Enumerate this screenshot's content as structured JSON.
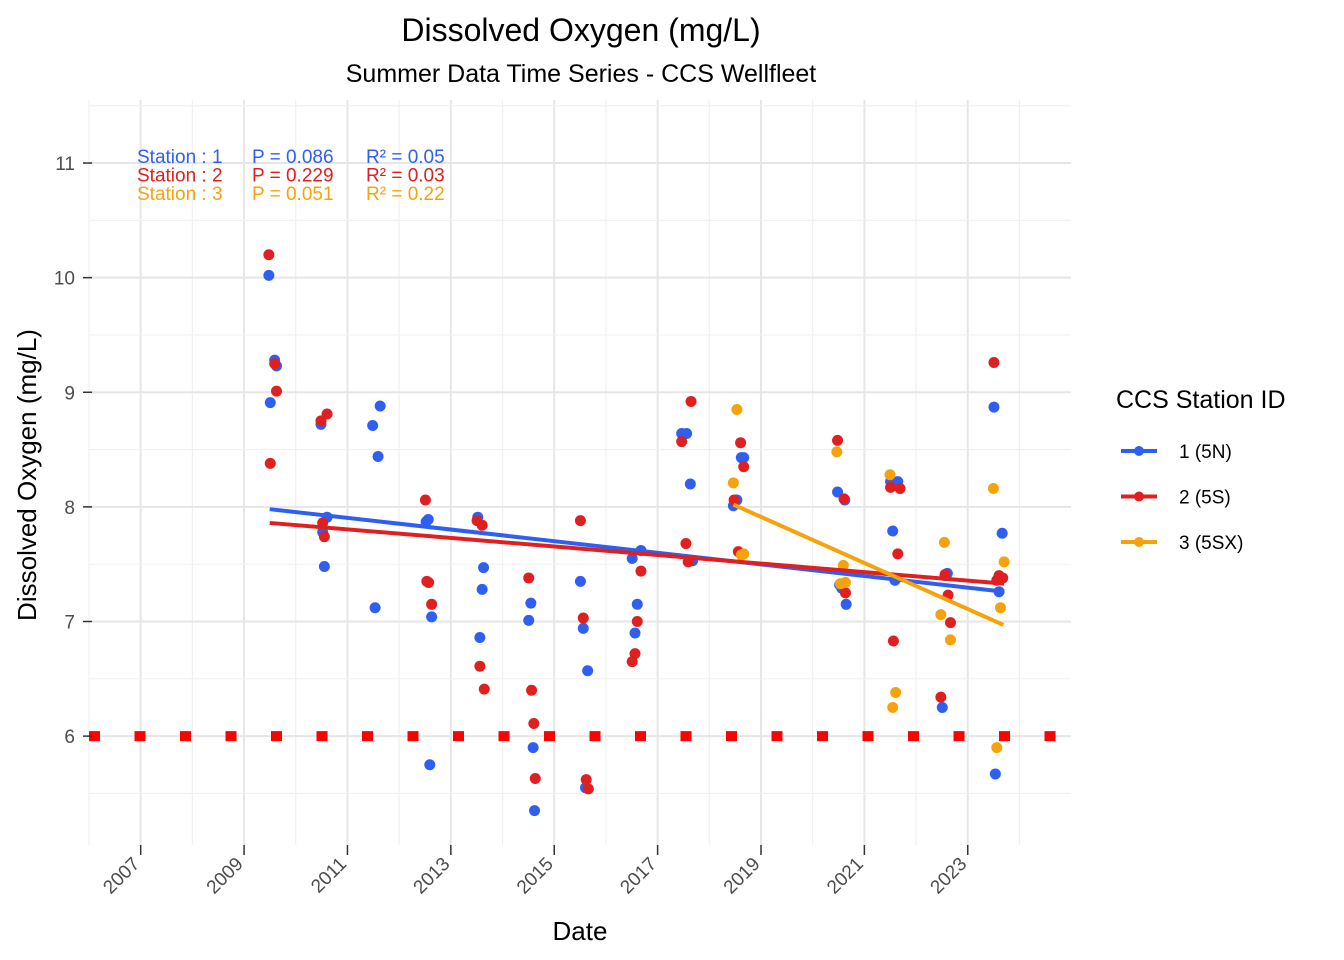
{
  "chart_data": {
    "type": "scatter",
    "title": "Dissolved Oxygen (mg/L)",
    "subtitle": "Summer Data Time Series - CCS Wellfleet",
    "xlabel": "Date",
    "ylabel": "Dissolved Oxygen (mg/L)",
    "xlim": [
      "2006-01-01",
      "2024-12-31"
    ],
    "ylim": [
      5.05,
      11.55
    ],
    "x_ticks": [
      "2007",
      "2009",
      "2011",
      "2013",
      "2015",
      "2017",
      "2019",
      "2021",
      "2023"
    ],
    "y_ticks": [
      6,
      7,
      8,
      9,
      10,
      11
    ],
    "grid": true,
    "legend_title": "CCS Station ID",
    "legend_position": "right",
    "threshold_line": {
      "y": 6,
      "style": "dotted",
      "color": "#ff0000"
    },
    "series": [
      {
        "name": "1 (5N)",
        "color": "#2f5ff0",
        "trend": {
          "from": [
            "2009-07-01",
            7.98
          ],
          "to": [
            "2023-09-15",
            7.26
          ]
        },
        "stats": {
          "label": "Station : 1",
          "p": "P = 0.086",
          "r2": "R² = 0.05"
        },
        "points": [
          [
            "2009-06-25",
            10.02
          ],
          [
            "2009-07-05",
            8.91
          ],
          [
            "2009-08-05",
            9.28
          ],
          [
            "2009-08-18",
            9.23
          ],
          [
            "2010-06-28",
            8.72
          ],
          [
            "2010-07-10",
            7.78
          ],
          [
            "2010-07-22",
            7.48
          ],
          [
            "2010-08-10",
            7.91
          ],
          [
            "2011-06-28",
            8.71
          ],
          [
            "2011-07-15",
            7.12
          ],
          [
            "2011-08-05",
            8.44
          ],
          [
            "2011-08-20",
            8.88
          ],
          [
            "2012-07-10",
            7.87
          ],
          [
            "2012-07-25",
            7.89
          ],
          [
            "2012-08-05",
            5.75
          ],
          [
            "2012-08-18",
            7.04
          ],
          [
            "2013-07-10",
            7.91
          ],
          [
            "2013-07-25",
            6.86
          ],
          [
            "2013-08-10",
            7.28
          ],
          [
            "2013-08-20",
            7.47
          ],
          [
            "2014-07-05",
            7.01
          ],
          [
            "2014-07-20",
            7.16
          ],
          [
            "2014-08-05",
            5.9
          ],
          [
            "2014-08-15",
            5.35
          ],
          [
            "2015-07-05",
            7.35
          ],
          [
            "2015-07-25",
            6.94
          ],
          [
            "2015-08-10",
            5.55
          ],
          [
            "2015-08-25",
            6.57
          ],
          [
            "2016-07-05",
            7.55
          ],
          [
            "2016-07-25",
            6.9
          ],
          [
            "2016-08-10",
            7.15
          ],
          [
            "2016-09-05",
            7.62
          ],
          [
            "2017-06-20",
            8.64
          ],
          [
            "2017-07-25",
            8.64
          ],
          [
            "2017-08-20",
            8.2
          ],
          [
            "2017-09-05",
            7.53
          ],
          [
            "2018-06-20",
            8.01
          ],
          [
            "2018-07-15",
            8.06
          ],
          [
            "2018-08-15",
            8.43
          ],
          [
            "2018-09-01",
            8.43
          ],
          [
            "2020-06-25",
            8.13
          ],
          [
            "2020-07-10",
            7.32
          ],
          [
            "2020-07-25",
            7.29
          ],
          [
            "2020-08-15",
            8.06
          ],
          [
            "2020-08-25",
            7.15
          ],
          [
            "2021-07-05",
            8.22
          ],
          [
            "2021-07-20",
            7.79
          ],
          [
            "2021-08-05",
            7.36
          ],
          [
            "2021-08-25",
            8.22
          ],
          [
            "2022-07-05",
            6.25
          ],
          [
            "2022-07-25",
            7.4
          ],
          [
            "2022-08-10",
            7.42
          ],
          [
            "2023-07-05",
            8.87
          ],
          [
            "2023-07-15",
            5.67
          ],
          [
            "2023-08-10",
            7.26
          ],
          [
            "2023-09-01",
            7.77
          ]
        ]
      },
      {
        "name": "2 (5S)",
        "color": "#e02020",
        "trend": {
          "from": [
            "2009-07-01",
            7.86
          ],
          "to": [
            "2023-09-15",
            7.33
          ]
        },
        "stats": {
          "label": "Station : 2",
          "p": "P = 0.229",
          "r2": "R² = 0.03"
        },
        "points": [
          [
            "2009-06-25",
            10.2
          ],
          [
            "2009-07-05",
            8.38
          ],
          [
            "2009-08-05",
            9.25
          ],
          [
            "2009-08-18",
            9.01
          ],
          [
            "2010-06-28",
            8.75
          ],
          [
            "2010-07-10",
            7.86
          ],
          [
            "2010-07-22",
            7.74
          ],
          [
            "2010-08-10",
            8.81
          ],
          [
            "2012-07-05",
            8.06
          ],
          [
            "2012-07-15",
            7.35
          ],
          [
            "2012-07-28",
            7.34
          ],
          [
            "2012-08-18",
            7.15
          ],
          [
            "2013-07-05",
            7.88
          ],
          [
            "2013-07-25",
            6.61
          ],
          [
            "2013-08-10",
            7.84
          ],
          [
            "2013-08-25",
            6.41
          ],
          [
            "2014-07-05",
            7.38
          ],
          [
            "2014-07-25",
            6.4
          ],
          [
            "2014-08-10",
            6.11
          ],
          [
            "2014-08-20",
            5.63
          ],
          [
            "2015-07-05",
            7.88
          ],
          [
            "2015-07-25",
            7.03
          ],
          [
            "2015-08-15",
            5.62
          ],
          [
            "2015-08-30",
            5.54
          ],
          [
            "2016-07-05",
            6.65
          ],
          [
            "2016-07-25",
            6.72
          ],
          [
            "2016-08-10",
            7.0
          ],
          [
            "2016-09-05",
            7.44
          ],
          [
            "2017-06-20",
            8.57
          ],
          [
            "2017-07-20",
            7.68
          ],
          [
            "2017-08-05",
            7.52
          ],
          [
            "2017-08-25",
            8.92
          ],
          [
            "2018-06-25",
            8.06
          ],
          [
            "2018-07-25",
            7.61
          ],
          [
            "2018-08-10",
            8.56
          ],
          [
            "2018-09-01",
            8.35
          ],
          [
            "2020-06-25",
            8.58
          ],
          [
            "2020-08-10",
            8.07
          ],
          [
            "2020-08-20",
            7.25
          ],
          [
            "2021-07-05",
            8.17
          ],
          [
            "2021-07-25",
            6.83
          ],
          [
            "2021-08-25",
            7.59
          ],
          [
            "2021-09-10",
            8.16
          ],
          [
            "2022-06-25",
            6.34
          ],
          [
            "2022-07-25",
            7.41
          ],
          [
            "2022-08-15",
            7.23
          ],
          [
            "2022-09-01",
            6.99
          ],
          [
            "2023-07-05",
            9.26
          ],
          [
            "2023-07-25",
            7.36
          ],
          [
            "2023-08-10",
            7.4
          ],
          [
            "2023-09-05",
            7.38
          ]
        ]
      },
      {
        "name": "3 (5SX)",
        "color": "#f5a30d",
        "trend": {
          "from": [
            "2018-06-20",
            8.02
          ],
          "to": [
            "2023-09-10",
            6.97
          ]
        },
        "stats": {
          "label": "Station : 3",
          "p": "P = 0.051",
          "r2": "R² = 0.22"
        },
        "points": [
          [
            "2018-06-20",
            8.21
          ],
          [
            "2018-07-15",
            8.85
          ],
          [
            "2018-08-15",
            7.58
          ],
          [
            "2018-09-01",
            7.59
          ],
          [
            "2020-06-20",
            8.48
          ],
          [
            "2020-07-15",
            7.33
          ],
          [
            "2020-08-05",
            7.49
          ],
          [
            "2020-08-20",
            7.34
          ],
          [
            "2021-07-01",
            8.28
          ],
          [
            "2021-07-20",
            6.25
          ],
          [
            "2021-08-10",
            6.38
          ],
          [
            "2022-06-25",
            7.06
          ],
          [
            "2022-07-20",
            7.69
          ],
          [
            "2022-09-01",
            6.84
          ],
          [
            "2023-07-01",
            8.16
          ],
          [
            "2023-07-25",
            5.9
          ],
          [
            "2023-08-20",
            7.12
          ],
          [
            "2023-09-15",
            7.52
          ]
        ]
      }
    ]
  }
}
